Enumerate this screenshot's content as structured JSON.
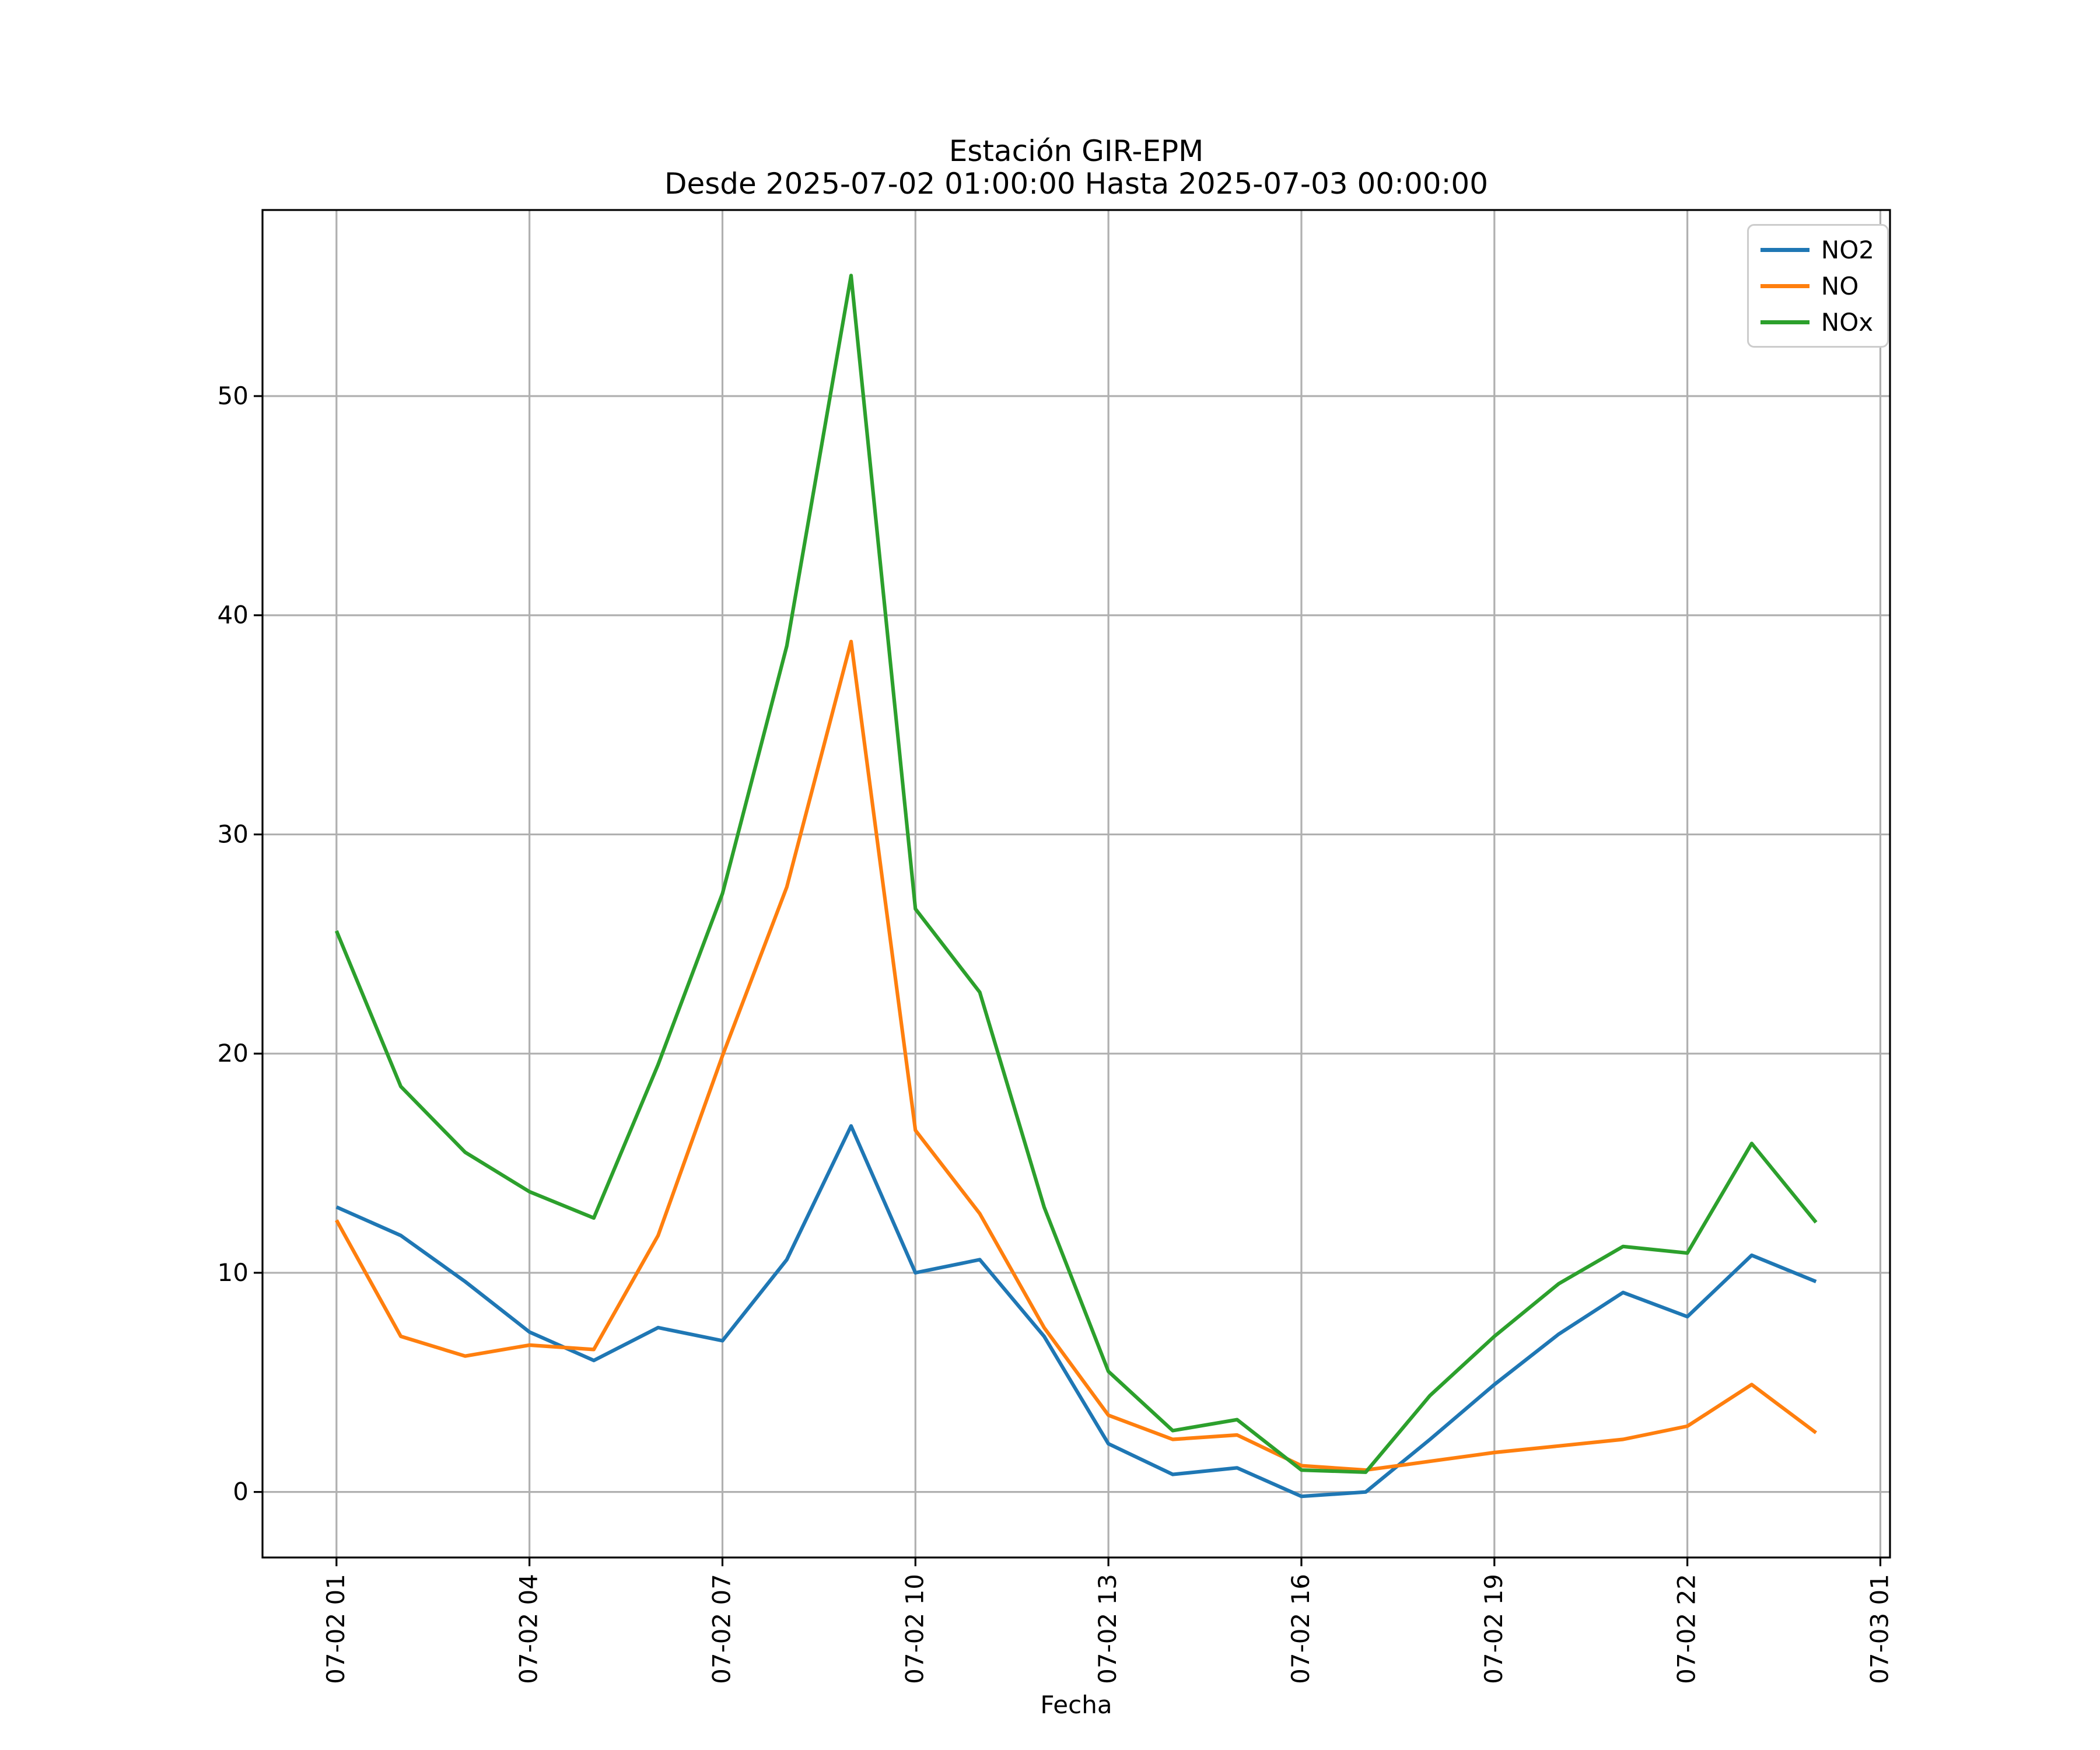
{
  "chart_data": {
    "type": "line",
    "title": "Estación GIR-EPM",
    "subtitle": "Desde 2025-07-02 01:00:00 Hasta 2025-07-03 00:00:00",
    "xlabel": "Fecha",
    "ylabel": "",
    "grid": true,
    "legend_position": "upper right",
    "x_hours": [
      1,
      2,
      3,
      4,
      5,
      6,
      7,
      8,
      9,
      10,
      11,
      12,
      13,
      14,
      15,
      16,
      17,
      18,
      19,
      20,
      21,
      22,
      23,
      24
    ],
    "x_time_labels": [
      "07-02 01:00",
      "07-02 02:00",
      "07-02 03:00",
      "07-02 04:00",
      "07-02 05:00",
      "07-02 06:00",
      "07-02 07:00",
      "07-02 08:00",
      "07-02 09:00",
      "07-02 10:00",
      "07-02 11:00",
      "07-02 12:00",
      "07-02 13:00",
      "07-02 14:00",
      "07-02 15:00",
      "07-02 16:00",
      "07-02 17:00",
      "07-02 18:00",
      "07-02 19:00",
      "07-02 20:00",
      "07-02 21:00",
      "07-02 22:00",
      "07-02 23:00",
      "07-03 00:00"
    ],
    "series": [
      {
        "name": "NO2",
        "color": "#1f77b4",
        "values": [
          13.0,
          11.7,
          9.6,
          7.3,
          6.0,
          7.5,
          6.9,
          10.6,
          16.7,
          10.0,
          10.6,
          7.1,
          2.2,
          0.8,
          1.1,
          -0.2,
          0.0,
          2.4,
          4.9,
          7.2,
          9.1,
          8.0,
          10.8,
          9.6
        ]
      },
      {
        "name": "NO",
        "color": "#ff7f0e",
        "values": [
          12.4,
          7.1,
          6.2,
          6.7,
          6.5,
          11.7,
          19.9,
          27.6,
          38.8,
          16.5,
          12.7,
          7.5,
          3.5,
          2.4,
          2.6,
          1.2,
          1.0,
          1.4,
          1.8,
          2.1,
          2.4,
          3.0,
          4.9,
          2.7
        ]
      },
      {
        "name": "NOx",
        "color": "#2ca02c",
        "values": [
          25.6,
          18.5,
          15.5,
          13.7,
          12.5,
          19.5,
          27.3,
          38.6,
          55.5,
          26.6,
          22.8,
          13.0,
          5.5,
          2.8,
          3.3,
          1.0,
          0.9,
          4.4,
          7.1,
          9.5,
          11.2,
          10.9,
          15.9,
          12.3
        ]
      }
    ],
    "xticks": [
      {
        "hour": 1,
        "label": "07-02 01"
      },
      {
        "hour": 4,
        "label": "07-02 04"
      },
      {
        "hour": 7,
        "label": "07-02 07"
      },
      {
        "hour": 10,
        "label": "07-02 10"
      },
      {
        "hour": 13,
        "label": "07-02 13"
      },
      {
        "hour": 16,
        "label": "07-02 16"
      },
      {
        "hour": 19,
        "label": "07-02 19"
      },
      {
        "hour": 22,
        "label": "07-02 22"
      },
      {
        "hour": 25,
        "label": "07-03 01"
      }
    ],
    "yticks": [
      0,
      10,
      20,
      30,
      40,
      50
    ],
    "xlim": [
      -0.15,
      25.15
    ],
    "ylim": [
      -2.99,
      58.49
    ],
    "grid_color": "#b0b0b0",
    "spine_color": "#000000",
    "legend_border_color": "#cccccc"
  }
}
